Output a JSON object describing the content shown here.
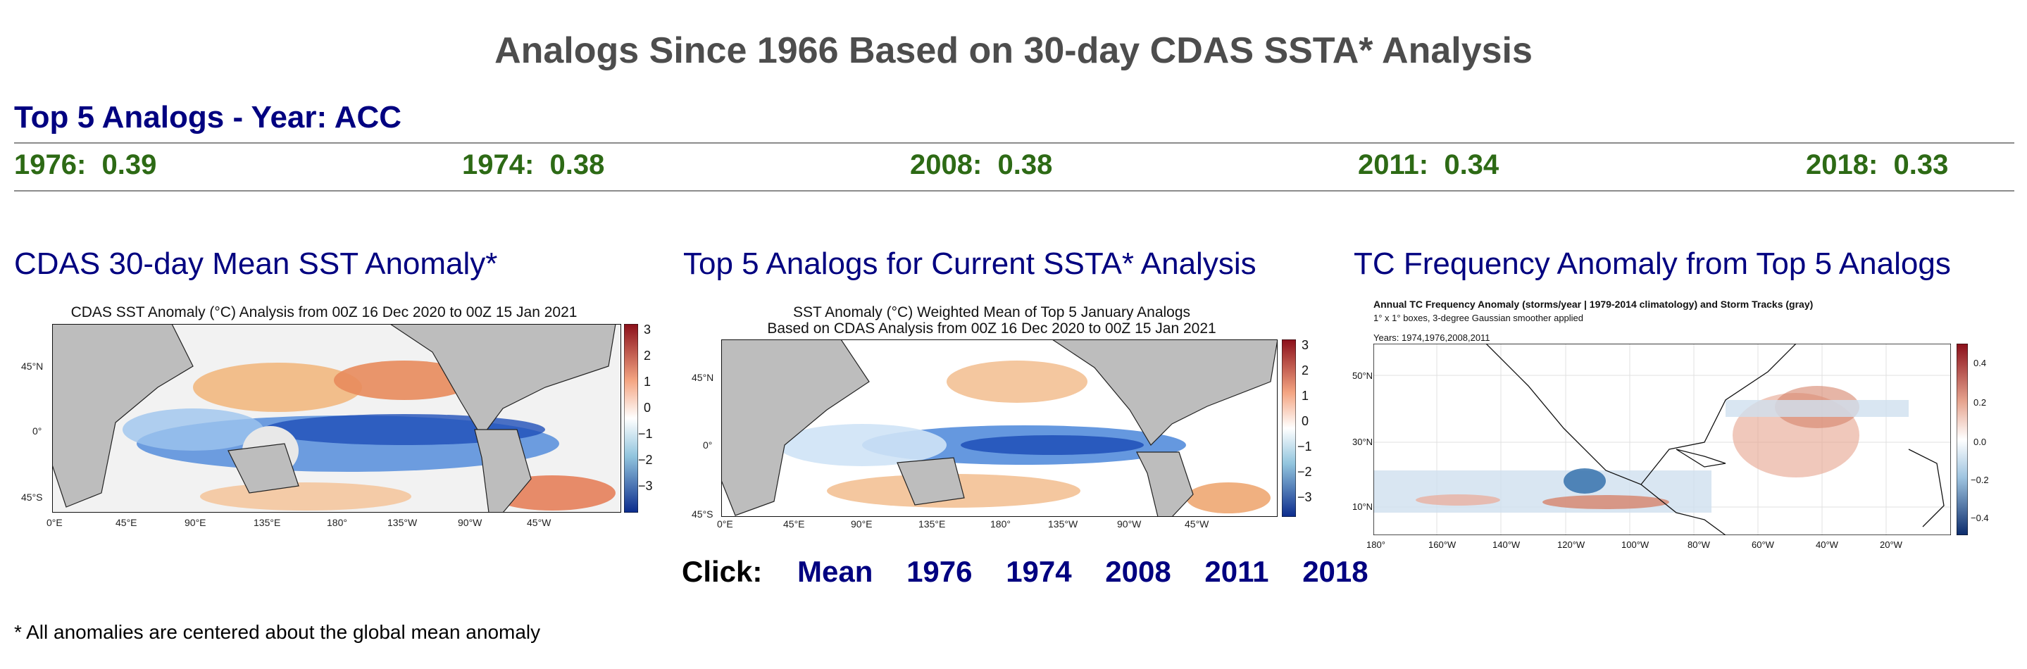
{
  "title": "Analogs Since 1966 Based on 30-day CDAS SSTA* Analysis",
  "acc_heading": "Top 5 Analogs - Year: ACC",
  "analogs": [
    {
      "text": "1976:  0.39"
    },
    {
      "text": "1974:  0.38"
    },
    {
      "text": "2008:  0.38"
    },
    {
      "text": "2011:  0.34"
    },
    {
      "text": "2018:  0.33"
    }
  ],
  "sections": {
    "left": "CDAS 30-day Mean SST Anomaly*",
    "middle": "Top 5 Analogs for Current SSTA* Analysis",
    "right": "TC Frequency Anomaly from Top 5 Analogs"
  },
  "map1": {
    "title": "CDAS SST Anomaly (°C) Analysis from 00Z 16 Dec 2020 to 00Z 15 Jan 2021",
    "lat_labels": [
      "45°N",
      "0°",
      "45°S"
    ],
    "lon_labels": [
      "0°E",
      "45°E",
      "90°E",
      "135°E",
      "180°",
      "135°W",
      "90°W",
      "45°W"
    ],
    "cbar": [
      "3",
      "2",
      "1",
      "0",
      "−1",
      "−2",
      "−3"
    ]
  },
  "map2": {
    "title1": "SST Anomaly (°C) Weighted Mean of Top 5 January Analogs",
    "title2": "Based on CDAS Analysis from 00Z 16 Dec 2020 to 00Z 15 Jan 2021",
    "lat_labels": [
      "45°N",
      "0°",
      "45°S"
    ],
    "lon_labels": [
      "0°E",
      "45°E",
      "90°E",
      "135°E",
      "180°",
      "135°W",
      "90°W",
      "45°W"
    ],
    "cbar": [
      "3",
      "2",
      "1",
      "0",
      "−1",
      "−2",
      "−3"
    ]
  },
  "map3": {
    "title": "Annual TC Frequency Anomaly (storms/year | 1979-2014 climatology) and Storm Tracks (gray)",
    "subtitle": "1° x 1°  boxes, 3-degree Gaussian smoother applied",
    "years": "Years: 1974,1976,2008,2011",
    "lat_labels": [
      "50°N",
      "30°N",
      "10°N"
    ],
    "lon_labels": [
      "180°",
      "160°W",
      "140°W",
      "120°W",
      "100°W",
      "80°W",
      "60°W",
      "40°W",
      "20°W"
    ],
    "cbar": [
      "0.4",
      "0.2",
      "0.0",
      "−0.2",
      "−0.4"
    ]
  },
  "click": {
    "label": "Click:",
    "links": [
      "Mean",
      "1976",
      "1974",
      "2008",
      "2011",
      "2018"
    ]
  },
  "footnote": "* All anomalies are centered about the global mean anomaly"
}
